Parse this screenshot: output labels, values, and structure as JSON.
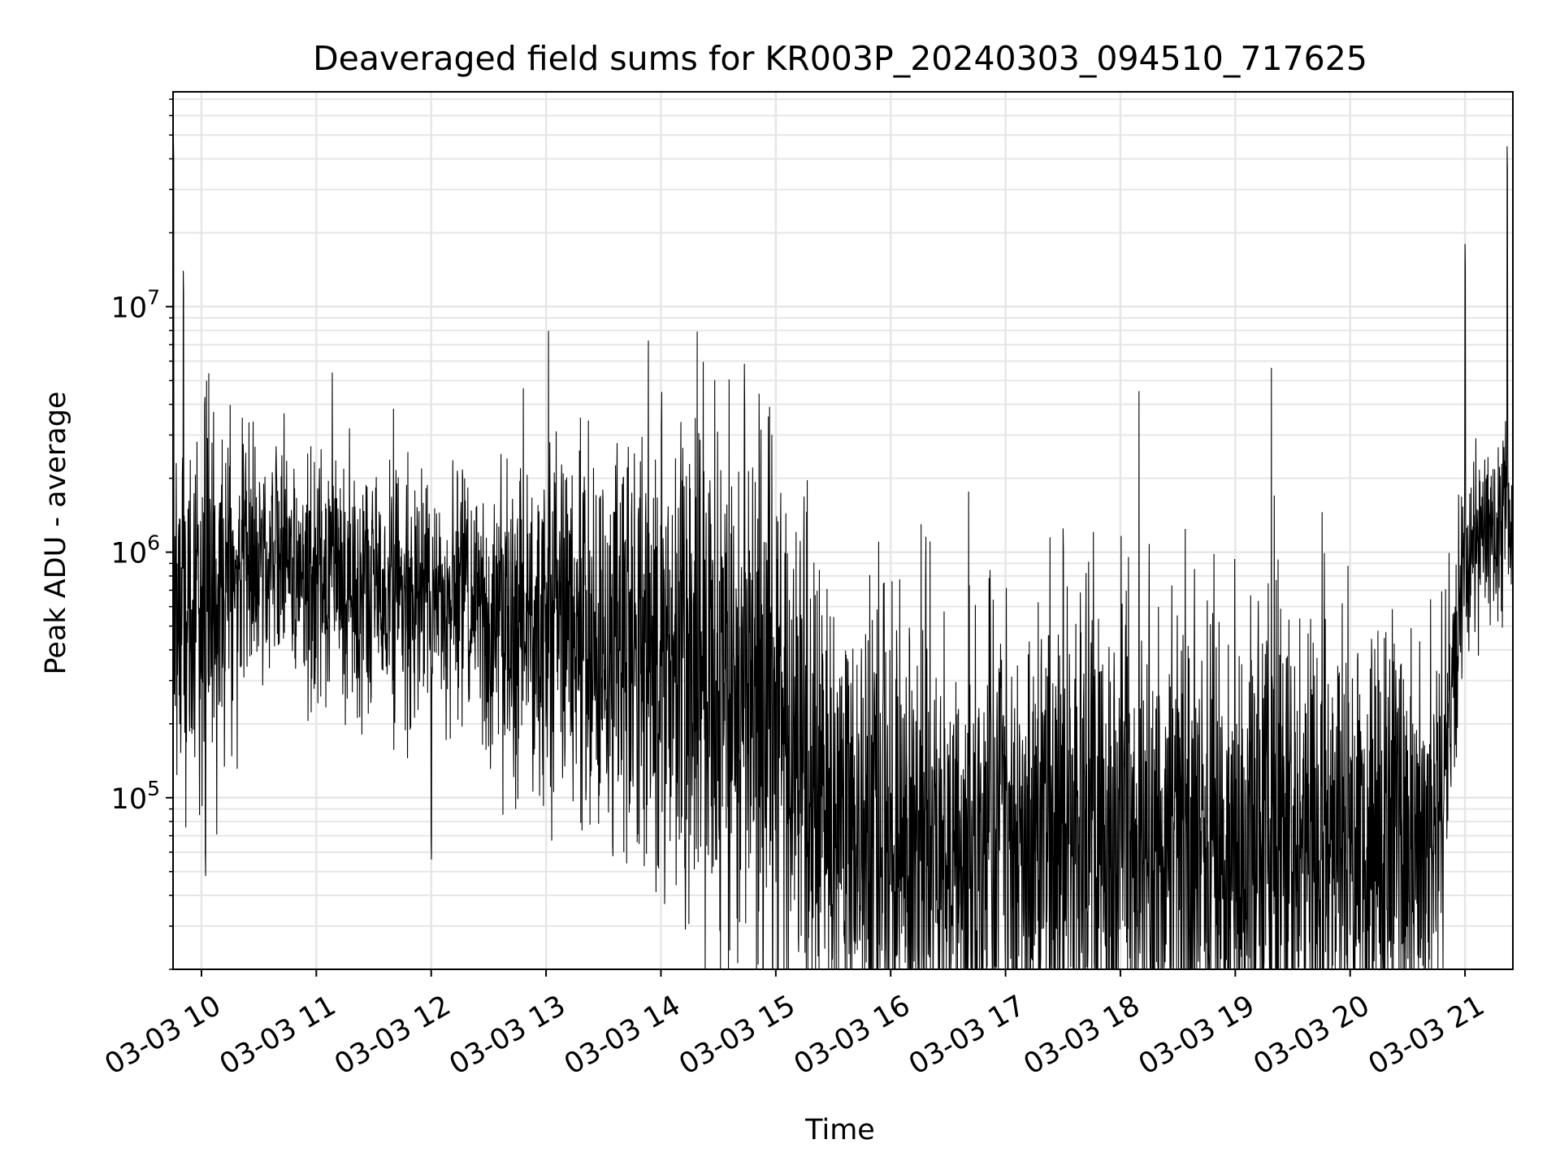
{
  "chart_data": {
    "type": "line",
    "title": "Deaveraged field sums for KR003P_20240303_094510_717625",
    "xlabel": "Time",
    "ylabel": "Peak ADU - average",
    "y_scale": "log",
    "grid": true,
    "line_color": "#000000",
    "grid_color": "#e6e6e6",
    "xlim": [
      "2024-03-03T09:45:10",
      "2024-03-03T21:25:00"
    ],
    "ylim": [
      20000,
      75000000
    ],
    "x_ticks": [
      {
        "time": "2024-03-03T10:00:00",
        "label": "03-03 10"
      },
      {
        "time": "2024-03-03T11:00:00",
        "label": "03-03 11"
      },
      {
        "time": "2024-03-03T12:00:00",
        "label": "03-03 12"
      },
      {
        "time": "2024-03-03T13:00:00",
        "label": "03-03 13"
      },
      {
        "time": "2024-03-03T14:00:00",
        "label": "03-03 14"
      },
      {
        "time": "2024-03-03T15:00:00",
        "label": "03-03 15"
      },
      {
        "time": "2024-03-03T16:00:00",
        "label": "03-03 16"
      },
      {
        "time": "2024-03-03T17:00:00",
        "label": "03-03 17"
      },
      {
        "time": "2024-03-03T18:00:00",
        "label": "03-03 18"
      },
      {
        "time": "2024-03-03T19:00:00",
        "label": "03-03 19"
      },
      {
        "time": "2024-03-03T20:00:00",
        "label": "03-03 20"
      },
      {
        "time": "2024-03-03T21:00:00",
        "label": "03-03 21"
      }
    ],
    "y_ticks": [
      {
        "value": 100000,
        "base": "10",
        "exp": "5"
      },
      {
        "value": 1000000,
        "base": "10",
        "exp": "6"
      },
      {
        "value": 10000000,
        "base": "10",
        "exp": "7"
      }
    ],
    "envelope": [
      {
        "t": "2024-03-03T09:45:10",
        "median": 600000,
        "spread": 0.3
      },
      {
        "t": "2024-03-03T10:00:00",
        "median": 650000,
        "spread": 0.45
      },
      {
        "t": "2024-03-03T10:30:00",
        "median": 900000,
        "spread": 0.2
      },
      {
        "t": "2024-03-03T11:00:00",
        "median": 800000,
        "spread": 0.25
      },
      {
        "t": "2024-03-03T12:00:00",
        "median": 650000,
        "spread": 0.25
      },
      {
        "t": "2024-03-03T13:00:00",
        "median": 520000,
        "spread": 0.35
      },
      {
        "t": "2024-03-03T14:00:00",
        "median": 350000,
        "spread": 0.5
      },
      {
        "t": "2024-03-03T15:00:00",
        "median": 220000,
        "spread": 0.55
      },
      {
        "t": "2024-03-03T15:30:00",
        "median": 80000,
        "spread": 0.5
      },
      {
        "t": "2024-03-03T16:00:00",
        "median": 65000,
        "spread": 0.5
      },
      {
        "t": "2024-03-03T18:00:00",
        "median": 65000,
        "spread": 0.5
      },
      {
        "t": "2024-03-03T20:00:00",
        "median": 65000,
        "spread": 0.5
      },
      {
        "t": "2024-03-03T20:45:00",
        "median": 65000,
        "spread": 0.4
      },
      {
        "t": "2024-03-03T21:00:00",
        "median": 900000,
        "spread": 0.2
      },
      {
        "t": "2024-03-03T21:25:00",
        "median": 1600000,
        "spread": 0.2
      }
    ],
    "spikes": [
      {
        "t": "2024-03-03T09:45:20",
        "value": 50000000
      },
      {
        "t": "2024-03-03T09:50:30",
        "value": 14000000
      },
      {
        "t": "2024-03-03T10:02:00",
        "value": 60000
      },
      {
        "t": "2024-03-03T10:39:00",
        "value": 2700000
      },
      {
        "t": "2024-03-03T12:59:00",
        "value": 1800000
      },
      {
        "t": "2024-03-03T12:00:00",
        "value": 70000
      },
      {
        "t": "2024-03-03T16:20:00",
        "value": 28000
      },
      {
        "t": "2024-03-03T17:30:00",
        "value": 1250000
      },
      {
        "t": "2024-03-03T18:10:00",
        "value": 29000
      },
      {
        "t": "2024-03-03T21:00:00",
        "value": 18000000
      },
      {
        "t": "2024-03-03T21:22:00",
        "value": 45000000
      }
    ]
  }
}
